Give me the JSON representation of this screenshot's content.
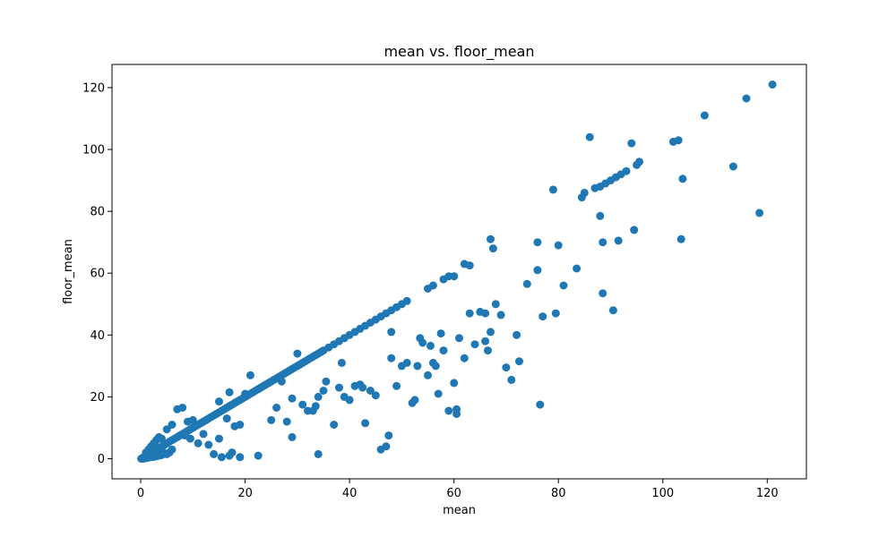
{
  "chart_data": {
    "type": "scatter",
    "title": "mean vs. floor_mean",
    "xlabel": "mean",
    "ylabel": "floor_mean",
    "xlim": [
      -5.5,
      127.5
    ],
    "ylim": [
      -6.5,
      127.5
    ],
    "xticks": [
      0,
      20,
      40,
      60,
      80,
      100,
      120
    ],
    "yticks": [
      0,
      20,
      40,
      60,
      80,
      100,
      120
    ],
    "grid": false,
    "legend": "none",
    "marker_color": "#1f77b4",
    "series": [
      {
        "points": [
          [
            0.1,
            0.0
          ],
          [
            0.2,
            0.1
          ],
          [
            0.3,
            0.2
          ],
          [
            0.4,
            0.1
          ],
          [
            0.5,
            0.4
          ],
          [
            0.6,
            0.5
          ],
          [
            0.7,
            0.6
          ],
          [
            0.8,
            0.7
          ],
          [
            0.9,
            0.8
          ],
          [
            1.0,
            0.9
          ],
          [
            1.1,
            1.0
          ],
          [
            1.2,
            1.1
          ],
          [
            1.3,
            1.2
          ],
          [
            1.4,
            1.3
          ],
          [
            1.5,
            1.4
          ],
          [
            1.6,
            1.5
          ],
          [
            1.8,
            1.7
          ],
          [
            2.0,
            1.9
          ],
          [
            2.2,
            2.1
          ],
          [
            2.4,
            2.3
          ],
          [
            2.6,
            2.5
          ],
          [
            2.8,
            2.7
          ],
          [
            3.0,
            2.9
          ],
          [
            3.2,
            3.1
          ],
          [
            3.4,
            3.3
          ],
          [
            3.6,
            3.5
          ],
          [
            3.8,
            3.7
          ],
          [
            4.0,
            3.9
          ],
          [
            4.2,
            4.1
          ],
          [
            4.5,
            4.4
          ],
          [
            1.0,
            2.0
          ],
          [
            1.5,
            3.0
          ],
          [
            2.0,
            4.0
          ],
          [
            2.5,
            5.0
          ],
          [
            3.0,
            6.0
          ],
          [
            3.5,
            7.0
          ],
          [
            4.0,
            6.5
          ],
          [
            1.2,
            0.3
          ],
          [
            2.0,
            0.5
          ],
          [
            3.0,
            0.8
          ],
          [
            4.0,
            1.2
          ],
          [
            5.0,
            1.5
          ],
          [
            5.5,
            2.0
          ],
          [
            6.0,
            3.0
          ],
          [
            0.5,
            0.0
          ],
          [
            1.0,
            0.2
          ],
          [
            1.5,
            0.4
          ],
          [
            2.5,
            0.6
          ],
          [
            3.5,
            1.0
          ],
          [
            4.5,
            1.8
          ],
          [
            5.0,
            5.0
          ],
          [
            5.5,
            5.5
          ],
          [
            6.0,
            6.0
          ],
          [
            6.5,
            6.5
          ],
          [
            7.0,
            7.0
          ],
          [
            7.5,
            7.5
          ],
          [
            8.0,
            8.0
          ],
          [
            8.5,
            8.5
          ],
          [
            9.0,
            9.0
          ],
          [
            9.5,
            9.5
          ],
          [
            10.0,
            10.0
          ],
          [
            10.5,
            10.5
          ],
          [
            11.0,
            11.0
          ],
          [
            11.5,
            11.5
          ],
          [
            12.0,
            12.0
          ],
          [
            12.5,
            12.5
          ],
          [
            13.0,
            13.0
          ],
          [
            13.5,
            13.5
          ],
          [
            14.0,
            14.0
          ],
          [
            14.5,
            14.5
          ],
          [
            15.0,
            15.0
          ],
          [
            15.5,
            15.5
          ],
          [
            16.0,
            16.0
          ],
          [
            16.5,
            16.5
          ],
          [
            17.0,
            17.0
          ],
          [
            17.5,
            17.5
          ],
          [
            18.0,
            18.0
          ],
          [
            18.5,
            18.5
          ],
          [
            19.0,
            19.0
          ],
          [
            19.5,
            19.5
          ],
          [
            20.0,
            20.0
          ],
          [
            20.5,
            20.5
          ],
          [
            21.0,
            21.0
          ],
          [
            21.5,
            21.5
          ],
          [
            22.0,
            22.0
          ],
          [
            22.5,
            22.5
          ],
          [
            23.0,
            23.0
          ],
          [
            23.5,
            23.5
          ],
          [
            24.0,
            24.0
          ],
          [
            24.5,
            24.5
          ],
          [
            25.0,
            25.0
          ],
          [
            25.5,
            25.5
          ],
          [
            26.0,
            26.0
          ],
          [
            26.5,
            26.5
          ],
          [
            27.0,
            27.0
          ],
          [
            27.5,
            27.5
          ],
          [
            28.0,
            28.0
          ],
          [
            28.5,
            28.5
          ],
          [
            29.0,
            29.0
          ],
          [
            29.5,
            29.5
          ],
          [
            30.0,
            30.0
          ],
          [
            30.5,
            30.5
          ],
          [
            31.0,
            31.0
          ],
          [
            31.5,
            31.5
          ],
          [
            32.0,
            32.0
          ],
          [
            32.5,
            32.5
          ],
          [
            33.0,
            33.0
          ],
          [
            33.5,
            33.5
          ],
          [
            34.0,
            34.0
          ],
          [
            34.5,
            34.5
          ],
          [
            35.0,
            35.0
          ],
          [
            36.0,
            36.0
          ],
          [
            37.0,
            37.0
          ],
          [
            38.0,
            38.0
          ],
          [
            39.0,
            39.0
          ],
          [
            40.0,
            40.0
          ],
          [
            41.0,
            41.0
          ],
          [
            42.0,
            42.0
          ],
          [
            43.0,
            43.0
          ],
          [
            44.0,
            44.0
          ],
          [
            45.0,
            45.0
          ],
          [
            46.0,
            46.0
          ],
          [
            47.0,
            47.0
          ],
          [
            48.0,
            48.0
          ],
          [
            49.0,
            49.0
          ],
          [
            50.0,
            50.0
          ],
          [
            51.0,
            51.0
          ],
          [
            55.0,
            55.0
          ],
          [
            56.0,
            56.0
          ],
          [
            58.0,
            58.0
          ],
          [
            59.0,
            59.0
          ],
          [
            60.0,
            59.0
          ],
          [
            62.0,
            63.0
          ],
          [
            63.0,
            62.5
          ],
          [
            66.0,
            47.0
          ],
          [
            67.0,
            71.0
          ],
          [
            67.5,
            68.0
          ],
          [
            7.0,
            16.0
          ],
          [
            8.0,
            16.5
          ],
          [
            5.0,
            9.5
          ],
          [
            6.0,
            11.0
          ],
          [
            9.0,
            12.0
          ],
          [
            10.0,
            12.5
          ],
          [
            8.5,
            7.5
          ],
          [
            9.5,
            6.5
          ],
          [
            12.0,
            8.0
          ],
          [
            11.0,
            5.0
          ],
          [
            13.0,
            4.5
          ],
          [
            14.0,
            1.5
          ],
          [
            15.0,
            6.5
          ],
          [
            15.5,
            0.5
          ],
          [
            17.0,
            1.0
          ],
          [
            17.5,
            2.0
          ],
          [
            19.0,
            0.5
          ],
          [
            22.5,
            1.0
          ],
          [
            15.0,
            18.5
          ],
          [
            16.5,
            13.0
          ],
          [
            17.0,
            21.5
          ],
          [
            18.0,
            10.5
          ],
          [
            19.0,
            11.0
          ],
          [
            20.0,
            21.0
          ],
          [
            21.0,
            27.0
          ],
          [
            25.0,
            12.5
          ],
          [
            26.0,
            16.5
          ],
          [
            27.0,
            25.0
          ],
          [
            28.0,
            12.0
          ],
          [
            29.0,
            7.0
          ],
          [
            29.0,
            19.5
          ],
          [
            30.0,
            34.0
          ],
          [
            31.0,
            17.5
          ],
          [
            32.0,
            15.5
          ],
          [
            33.0,
            15.5
          ],
          [
            33.5,
            17.0
          ],
          [
            34.0,
            1.5
          ],
          [
            34.0,
            20.0
          ],
          [
            35.0,
            22.0
          ],
          [
            35.5,
            25.0
          ],
          [
            37.0,
            11.0
          ],
          [
            38.0,
            23.0
          ],
          [
            38.5,
            31.0
          ],
          [
            39.0,
            20.0
          ],
          [
            40.0,
            19.0
          ],
          [
            41.0,
            23.5
          ],
          [
            42.0,
            24.0
          ],
          [
            42.5,
            23.0
          ],
          [
            43.0,
            11.5
          ],
          [
            44.0,
            22.0
          ],
          [
            45.0,
            20.5
          ],
          [
            46.0,
            3.0
          ],
          [
            47.0,
            4.0
          ],
          [
            47.5,
            7.5
          ],
          [
            48.0,
            41.0
          ],
          [
            48.0,
            32.5
          ],
          [
            49.0,
            23.5
          ],
          [
            50.0,
            30.0
          ],
          [
            51.0,
            31.0
          ],
          [
            52.0,
            18.0
          ],
          [
            52.5,
            19.0
          ],
          [
            53.0,
            30.0
          ],
          [
            53.5,
            39.0
          ],
          [
            54.0,
            37.5
          ],
          [
            55.0,
            27.0
          ],
          [
            55.5,
            36.5
          ],
          [
            56.0,
            31.0
          ],
          [
            56.5,
            30.0
          ],
          [
            57.0,
            21.0
          ],
          [
            57.5,
            40.5
          ],
          [
            58.0,
            35.0
          ],
          [
            59.0,
            15.5
          ],
          [
            60.0,
            24.5
          ],
          [
            60.5,
            14.5
          ],
          [
            60.5,
            16.0
          ],
          [
            61.0,
            39.0
          ],
          [
            62.0,
            32.5
          ],
          [
            63.0,
            47.0
          ],
          [
            64.0,
            37.0
          ],
          [
            65.0,
            47.5
          ],
          [
            66.0,
            38.0
          ],
          [
            66.5,
            35.0
          ],
          [
            67.0,
            41.0
          ],
          [
            68.0,
            50.0
          ],
          [
            69.0,
            46.5
          ],
          [
            70.0,
            29.5
          ],
          [
            71.0,
            25.5
          ],
          [
            72.0,
            40.0
          ],
          [
            72.5,
            31.5
          ],
          [
            74.0,
            56.5
          ],
          [
            76.0,
            70.0
          ],
          [
            76.0,
            61.0
          ],
          [
            76.5,
            17.5
          ],
          [
            77.0,
            46.0
          ],
          [
            79.0,
            87.0
          ],
          [
            79.5,
            47.0
          ],
          [
            80.0,
            69.0
          ],
          [
            81.0,
            56.0
          ],
          [
            83.5,
            61.5
          ],
          [
            84.5,
            84.5
          ],
          [
            85.0,
            86.0
          ],
          [
            86.0,
            104.0
          ],
          [
            87.0,
            87.5
          ],
          [
            88.0,
            78.5
          ],
          [
            88.0,
            88.0
          ],
          [
            88.5,
            70.0
          ],
          [
            89.0,
            89.0
          ],
          [
            90.0,
            90.0
          ],
          [
            91.0,
            91.0
          ],
          [
            91.5,
            70.5
          ],
          [
            90.5,
            48.0
          ],
          [
            92.0,
            92.0
          ],
          [
            93.0,
            93.0
          ],
          [
            94.0,
            102.0
          ],
          [
            94.5,
            74.0
          ],
          [
            95.0,
            95.0
          ],
          [
            95.5,
            96.0
          ],
          [
            88.5,
            53.5
          ],
          [
            102.0,
            102.5
          ],
          [
            103.0,
            103.0
          ],
          [
            103.5,
            71.0
          ],
          [
            103.8,
            90.5
          ],
          [
            108.0,
            111.0
          ],
          [
            113.5,
            94.5
          ],
          [
            116.0,
            116.5
          ],
          [
            118.5,
            79.5
          ],
          [
            121.0,
            121.0
          ]
        ]
      }
    ]
  }
}
